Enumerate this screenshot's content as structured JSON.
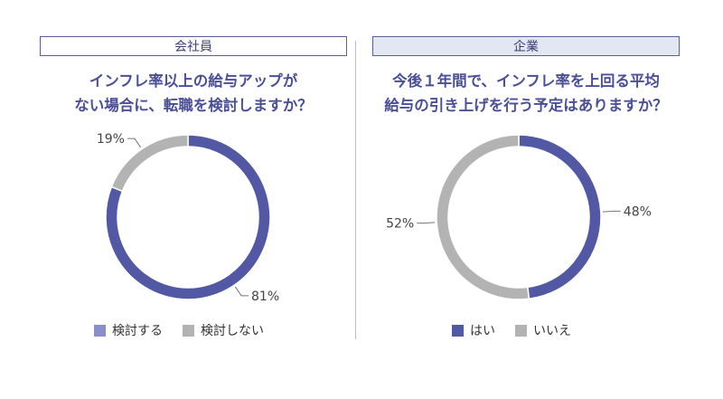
{
  "colors": {
    "primary": "#5358a4",
    "secondary": "#b3b3b3",
    "legend_primary": "#8b8fc9"
  },
  "left": {
    "header": "会社員",
    "question_lines": [
      "インフレ率以上の給与アップが",
      "ない場合に、転職を検討しますか？"
    ],
    "legend": [
      "検討する",
      "検討しない"
    ]
  },
  "right": {
    "header": "企業",
    "question_lines": [
      "今後１年間で、インフレ率を上回る平均",
      "給与の引き上げを行う予定はありますか？"
    ],
    "legend": [
      "はい",
      "いいえ"
    ]
  },
  "chart_data": [
    {
      "type": "pie",
      "title": "インフレ率以上の給与アップがない場合に、転職を検討しますか？",
      "categories": [
        "検討する",
        "検討しない"
      ],
      "values": [
        81,
        19
      ],
      "labels": [
        "81%",
        "19%"
      ],
      "legend_position": "bottom"
    },
    {
      "type": "pie",
      "title": "今後１年間で、インフレ率を上回る平均給与の引き上げを行う予定はありますか？",
      "categories": [
        "はい",
        "いいえ"
      ],
      "values": [
        48,
        52
      ],
      "labels": [
        "48%",
        "52%"
      ],
      "legend_position": "bottom"
    }
  ]
}
